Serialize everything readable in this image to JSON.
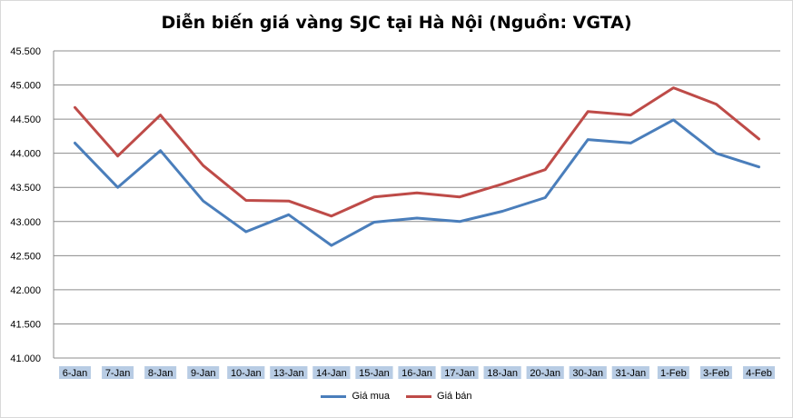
{
  "chart_data": {
    "type": "line",
    "title": "Diễn biến giá vàng SJC tại Hà Nội (Nguồn: VGTA)",
    "categories": [
      "6-Jan",
      "7-Jan",
      "8-Jan",
      "9-Jan",
      "10-Jan",
      "13-Jan",
      "14-Jan",
      "15-Jan",
      "16-Jan",
      "17-Jan",
      "18-Jan",
      "20-Jan",
      "30-Jan",
      "31-Jan",
      "1-Feb",
      "3-Feb",
      "4-Feb"
    ],
    "y_tick_labels": [
      "45.500",
      "45.000",
      "44.500",
      "44.000",
      "43.500",
      "43.000",
      "42.500",
      "42.000",
      "41.500",
      "41.000"
    ],
    "ylim": [
      41000,
      45500
    ],
    "grid": true,
    "legend_position": "bottom",
    "series": [
      {
        "name": "Giá mua",
        "color": "#4a7ebb",
        "values": [
          44150,
          43500,
          44040,
          43300,
          42850,
          43100,
          42650,
          42990,
          43050,
          43000,
          43150,
          43350,
          44200,
          44150,
          44490,
          44000,
          43800
        ]
      },
      {
        "name": "Giá bán",
        "color": "#be4b48",
        "values": [
          44670,
          43960,
          44560,
          43820,
          43310,
          43300,
          43080,
          43360,
          43420,
          43360,
          43550,
          43760,
          44610,
          44560,
          44960,
          44720,
          44210
        ]
      }
    ]
  }
}
